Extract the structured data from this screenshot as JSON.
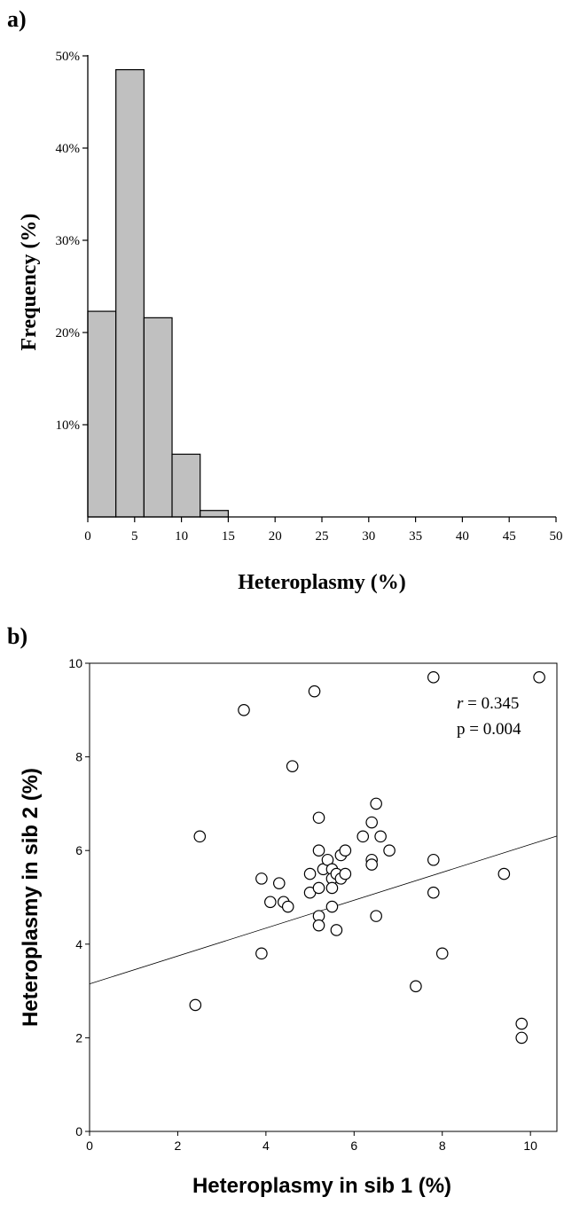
{
  "chart_data": [
    {
      "panel_label": "a)",
      "type": "bar",
      "xlabel": "Heteroplasmy (%)",
      "ylabel": "Frequency (%)",
      "xlim": [
        0,
        50
      ],
      "ylim": [
        0,
        50
      ],
      "x_ticks": [
        "0",
        "5",
        "10",
        "15",
        "20",
        "25",
        "30",
        "35",
        "40",
        "45",
        "50"
      ],
      "y_ticks": [
        "10%",
        "20%",
        "30%",
        "40%",
        "50%"
      ],
      "bin_edges": [
        0,
        3,
        6,
        9,
        12,
        15
      ],
      "values": [
        22.3,
        48.5,
        21.6,
        6.8,
        0.7
      ],
      "bar_color": "#c0c0c0",
      "grid": false
    },
    {
      "panel_label": "b)",
      "type": "scatter",
      "xlabel": "Heteroplasmy in sib 1 (%)",
      "ylabel": "Heteroplasmy in sib 2 (%)",
      "xlim": [
        0,
        10.6
      ],
      "ylim": [
        0,
        10
      ],
      "x_ticks": [
        "0",
        "2",
        "4",
        "6",
        "8",
        "10"
      ],
      "y_ticks": [
        "0",
        "2",
        "4",
        "6",
        "8",
        "10"
      ],
      "r_label": "r",
      "r_value": " = 0.345",
      "p_text": "p = 0.004",
      "fit_line": {
        "intercept": 3.15,
        "slope": 0.298
      },
      "grid": false,
      "points": [
        {
          "x": 2.4,
          "y": 2.7
        },
        {
          "x": 2.5,
          "y": 6.3
        },
        {
          "x": 3.5,
          "y": 9.0
        },
        {
          "x": 3.9,
          "y": 5.4
        },
        {
          "x": 3.9,
          "y": 3.8
        },
        {
          "x": 4.1,
          "y": 4.9
        },
        {
          "x": 4.3,
          "y": 5.3
        },
        {
          "x": 4.4,
          "y": 4.9
        },
        {
          "x": 4.5,
          "y": 4.8
        },
        {
          "x": 4.6,
          "y": 7.8
        },
        {
          "x": 5.0,
          "y": 5.5
        },
        {
          "x": 5.0,
          "y": 5.1
        },
        {
          "x": 5.1,
          "y": 9.4
        },
        {
          "x": 5.2,
          "y": 6.7
        },
        {
          "x": 5.2,
          "y": 6.0
        },
        {
          "x": 5.2,
          "y": 5.2
        },
        {
          "x": 5.2,
          "y": 4.6
        },
        {
          "x": 5.2,
          "y": 4.4
        },
        {
          "x": 5.3,
          "y": 5.6
        },
        {
          "x": 5.4,
          "y": 5.8
        },
        {
          "x": 5.5,
          "y": 5.6
        },
        {
          "x": 5.5,
          "y": 5.4
        },
        {
          "x": 5.5,
          "y": 5.2
        },
        {
          "x": 5.5,
          "y": 4.8
        },
        {
          "x": 5.6,
          "y": 5.5
        },
        {
          "x": 5.6,
          "y": 4.3
        },
        {
          "x": 5.7,
          "y": 5.9
        },
        {
          "x": 5.7,
          "y": 5.4
        },
        {
          "x": 5.8,
          "y": 6.0
        },
        {
          "x": 5.8,
          "y": 5.5
        },
        {
          "x": 6.2,
          "y": 6.3
        },
        {
          "x": 6.4,
          "y": 6.6
        },
        {
          "x": 6.4,
          "y": 5.8
        },
        {
          "x": 6.4,
          "y": 5.7
        },
        {
          "x": 6.5,
          "y": 7.0
        },
        {
          "x": 6.5,
          "y": 4.6
        },
        {
          "x": 6.6,
          "y": 6.3
        },
        {
          "x": 6.8,
          "y": 6.0
        },
        {
          "x": 7.4,
          "y": 3.1
        },
        {
          "x": 7.8,
          "y": 9.7
        },
        {
          "x": 7.8,
          "y": 5.8
        },
        {
          "x": 7.8,
          "y": 5.1
        },
        {
          "x": 8.0,
          "y": 3.8
        },
        {
          "x": 9.4,
          "y": 5.5
        },
        {
          "x": 9.8,
          "y": 2.3
        },
        {
          "x": 9.8,
          "y": 2.0
        },
        {
          "x": 10.2,
          "y": 9.7
        }
      ]
    }
  ]
}
